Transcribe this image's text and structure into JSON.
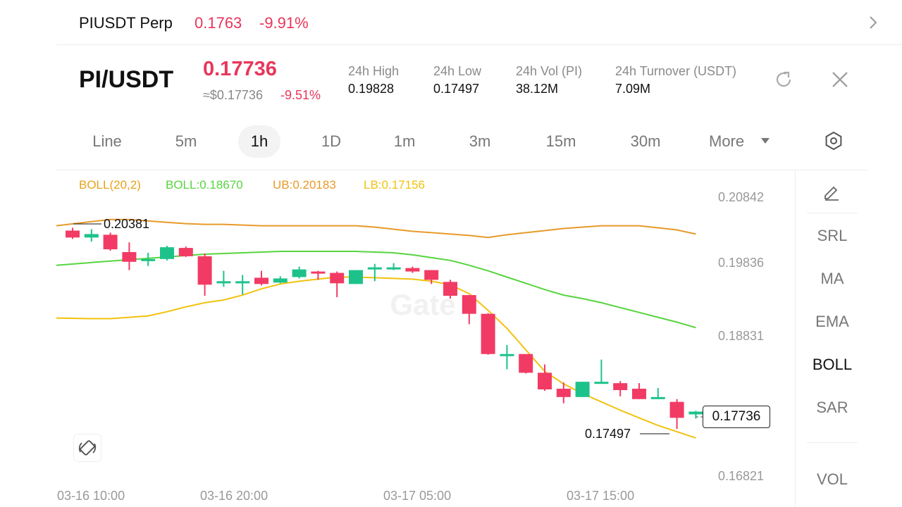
{
  "perp": {
    "name": "PIUSDT Perp",
    "price": "0.1763",
    "change": "-9.91%"
  },
  "header": {
    "pair": "PI/USDT",
    "last_price": "0.17736",
    "usd_price": "≈$0.17736",
    "usd_change": "-9.51%",
    "stats": [
      {
        "label": "24h  High",
        "value": "0.19828"
      },
      {
        "label": "24h  Low",
        "value": "0.17497"
      },
      {
        "label": "24h  Vol (PI)",
        "value": "38.12M"
      },
      {
        "label": "24h  Turnover (USDT)",
        "value": "7.09M"
      }
    ]
  },
  "timeframes": [
    "Line",
    "5m",
    "1h",
    "1D",
    "1m",
    "3m",
    "15m",
    "30m",
    "More"
  ],
  "active_timeframe": "1h",
  "indicators": {
    "boll_params": "BOLL(20,2)",
    "boll_mid": "BOLL:0.18670",
    "boll_ub": "UB:0.20183",
    "boll_lb": "LB:0.17156"
  },
  "side_panel": [
    "SRL",
    "MA",
    "EMA",
    "BOLL",
    "SAR",
    "VOL"
  ],
  "side_active": "BOLL",
  "colors": {
    "up": "#1dc28b",
    "down": "#f23b64",
    "mid": "#57d43f",
    "upper": "#e89a2a",
    "lower": "#f2c20d",
    "accent": "#e8365b"
  },
  "chart_data": {
    "type": "candlestick",
    "y_ticks": [
      "0.20842",
      "0.19836",
      "0.18831",
      "0.16821"
    ],
    "x_ticks": [
      "03-16 10:00",
      "03-16 20:00",
      "03-17 05:00",
      "03-17 15:00"
    ],
    "high_label": "0.20381",
    "low_label": "0.17497",
    "last_price_label": "0.17736",
    "candles": [
      {
        "o": 0.2036,
        "h": 0.204,
        "c": 0.2026,
        "l": 0.2024
      },
      {
        "o": 0.2026,
        "h": 0.2038,
        "c": 0.2031,
        "l": 0.202
      },
      {
        "o": 0.203,
        "h": 0.2033,
        "c": 0.2009,
        "l": 0.2007
      },
      {
        "o": 0.2005,
        "h": 0.2019,
        "c": 0.1991,
        "l": 0.1979
      },
      {
        "o": 0.1995,
        "h": 0.2004,
        "c": 0.1995,
        "l": 0.1985
      },
      {
        "o": 0.1995,
        "h": 0.2014,
        "c": 0.2012,
        "l": 0.1993
      },
      {
        "o": 0.2011,
        "h": 0.2013,
        "c": 0.1999,
        "l": 0.1998
      },
      {
        "o": 0.1999,
        "h": 0.2003,
        "c": 0.1958,
        "l": 0.1942
      },
      {
        "o": 0.1963,
        "h": 0.1978,
        "c": 0.1963,
        "l": 0.1955
      },
      {
        "o": 0.1963,
        "h": 0.1972,
        "c": 0.1963,
        "l": 0.1944
      },
      {
        "o": 0.1968,
        "h": 0.1978,
        "c": 0.1959,
        "l": 0.1957
      },
      {
        "o": 0.1961,
        "h": 0.197,
        "c": 0.1967,
        "l": 0.196
      },
      {
        "o": 0.1969,
        "h": 0.1984,
        "c": 0.198,
        "l": 0.1967
      },
      {
        "o": 0.1977,
        "h": 0.1978,
        "c": 0.1976,
        "l": 0.1965
      },
      {
        "o": 0.1975,
        "h": 0.1977,
        "c": 0.196,
        "l": 0.194
      },
      {
        "o": 0.1959,
        "h": 0.1979,
        "c": 0.1979,
        "l": 0.1959
      },
      {
        "o": 0.1983,
        "h": 0.1988,
        "c": 0.1983,
        "l": 0.1963
      },
      {
        "o": 0.1983,
        "h": 0.1989,
        "c": 0.1983,
        "l": 0.1979
      },
      {
        "o": 0.1982,
        "h": 0.1984,
        "c": 0.1977,
        "l": 0.1975
      },
      {
        "o": 0.1979,
        "h": 0.1979,
        "c": 0.1965,
        "l": 0.1959
      },
      {
        "o": 0.1962,
        "h": 0.1965,
        "c": 0.1942,
        "l": 0.1938
      },
      {
        "o": 0.1943,
        "h": 0.1943,
        "c": 0.1916,
        "l": 0.1901
      },
      {
        "o": 0.1916,
        "h": 0.1917,
        "c": 0.1858,
        "l": 0.1857
      },
      {
        "o": 0.1858,
        "h": 0.1871,
        "c": 0.1858,
        "l": 0.1836
      },
      {
        "o": 0.1858,
        "h": 0.1858,
        "c": 0.1831,
        "l": 0.183
      },
      {
        "o": 0.1831,
        "h": 0.1843,
        "c": 0.1807,
        "l": 0.1805
      },
      {
        "o": 0.1808,
        "h": 0.1817,
        "c": 0.1796,
        "l": 0.1787
      },
      {
        "o": 0.1796,
        "h": 0.1818,
        "c": 0.1818,
        "l": 0.1796
      },
      {
        "o": 0.1818,
        "h": 0.185,
        "c": 0.1818,
        "l": 0.1817
      },
      {
        "o": 0.1816,
        "h": 0.1819,
        "c": 0.1806,
        "l": 0.1797
      },
      {
        "o": 0.1808,
        "h": 0.1816,
        "c": 0.1793,
        "l": 0.1793
      },
      {
        "o": 0.1796,
        "h": 0.1809,
        "c": 0.1796,
        "l": 0.1793
      },
      {
        "o": 0.1789,
        "h": 0.1793,
        "c": 0.1766,
        "l": 0.175
      },
      {
        "o": 0.1771,
        "h": 0.1776,
        "c": 0.1775,
        "l": 0.1765
      }
    ],
    "boll_upper": [
      0.2043,
      0.2049,
      0.2052,
      0.2052,
      0.205,
      0.2048,
      0.2046,
      0.2045,
      0.2045,
      0.2044,
      0.2043,
      0.2043,
      0.2043,
      0.2043,
      0.2043,
      0.2043,
      0.2041,
      0.2038,
      0.2035,
      0.2033,
      0.2031,
      0.2029,
      0.2026,
      0.203,
      0.2033,
      0.2036,
      0.2039,
      0.2041,
      0.2043,
      0.2043,
      0.2043,
      0.204,
      0.2037,
      0.2031
    ],
    "boll_mid": [
      0.1986,
      0.199,
      0.1992,
      0.1994,
      0.1996,
      0.1998,
      0.2,
      0.2002,
      0.2003,
      0.2004,
      0.2005,
      0.2006,
      0.2006,
      0.2006,
      0.2006,
      0.2006,
      0.2005,
      0.2004,
      0.2001,
      0.1997,
      0.1993,
      0.1986,
      0.1978,
      0.1969,
      0.196,
      0.1951,
      0.1943,
      0.1938,
      0.1932,
      0.1925,
      0.1918,
      0.1911,
      0.1904,
      0.1896
    ],
    "boll_lower": [
      0.191,
      0.1909,
      0.1909,
      0.1911,
      0.1913,
      0.1919,
      0.1926,
      0.1932,
      0.1936,
      0.1943,
      0.1952,
      0.1959,
      0.1963,
      0.1966,
      0.1969,
      0.1969,
      0.1968,
      0.1967,
      0.1966,
      0.1963,
      0.1958,
      0.1945,
      0.1921,
      0.1895,
      0.1864,
      0.1833,
      0.1815,
      0.1801,
      0.1789,
      0.1777,
      0.1766,
      0.1755,
      0.1746,
      0.1737
    ]
  }
}
